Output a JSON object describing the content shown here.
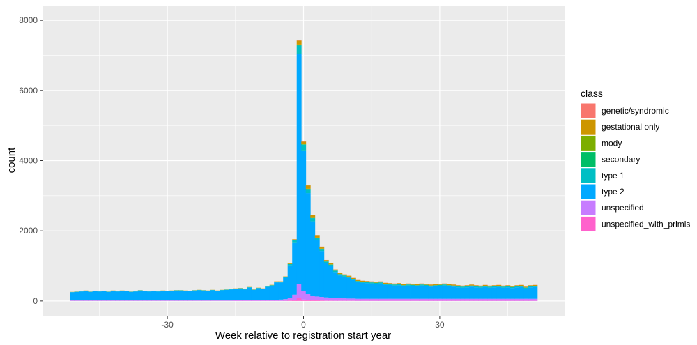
{
  "chart_data": {
    "type": "bar",
    "stacked": true,
    "xlabel": "Week relative to registration start year",
    "ylabel": "count",
    "xlim": [
      -57.5,
      57.5
    ],
    "ylim": [
      -420,
      8420
    ],
    "x_ticks": [
      -30,
      0,
      30
    ],
    "x_tick_labels": [
      "-30",
      "0",
      "30"
    ],
    "y_ticks": [
      0,
      2000,
      4000,
      6000,
      8000
    ],
    "y_tick_labels": [
      "0",
      "2000",
      "4000",
      "6000",
      "8000"
    ],
    "grid": true,
    "legend": {
      "title": "class",
      "position": "right",
      "entries": [
        "genetic/syndromic",
        "gestational only",
        "mody",
        "secondary",
        "type 1",
        "type 2",
        "unspecified",
        "unspecified_with_primis"
      ]
    },
    "colors": {
      "genetic/syndromic": "#F8766D",
      "gestational only": "#CD9600",
      "mody": "#7CAE00",
      "secondary": "#00BE67",
      "type 1": "#00BFC4",
      "type 2": "#00A9FF",
      "unspecified": "#C77CFF",
      "unspecified_with_primis": "#FF61CC"
    },
    "x": [
      -51,
      -50,
      -49,
      -48,
      -47,
      -46,
      -45,
      -44,
      -43,
      -42,
      -41,
      -40,
      -39,
      -38,
      -37,
      -36,
      -35,
      -34,
      -33,
      -32,
      -31,
      -30,
      -29,
      -28,
      -27,
      -26,
      -25,
      -24,
      -23,
      -22,
      -21,
      -20,
      -19,
      -18,
      -17,
      -16,
      -15,
      -14,
      -13,
      -12,
      -11,
      -10,
      -9,
      -8,
      -7,
      -6,
      -5,
      -4,
      -3,
      -2,
      -1,
      0,
      1,
      2,
      3,
      4,
      5,
      6,
      7,
      8,
      9,
      10,
      11,
      12,
      13,
      14,
      15,
      16,
      17,
      18,
      19,
      20,
      21,
      22,
      23,
      24,
      25,
      26,
      27,
      28,
      29,
      30,
      31,
      32,
      33,
      34,
      35,
      36,
      37,
      38,
      39,
      40,
      41,
      42,
      43,
      44,
      45,
      46,
      47,
      48,
      49,
      50,
      51
    ],
    "totals": [
      260,
      270,
      280,
      300,
      270,
      290,
      280,
      290,
      270,
      300,
      280,
      300,
      290,
      270,
      280,
      310,
      290,
      280,
      290,
      280,
      300,
      290,
      300,
      310,
      310,
      300,
      290,
      310,
      320,
      310,
      300,
      320,
      300,
      320,
      330,
      340,
      360,
      370,
      340,
      400,
      330,
      380,
      360,
      420,
      460,
      560,
      560,
      700,
      1070,
      1760,
      7430,
      4550,
      3300,
      2460,
      1880,
      1550,
      1170,
      1080,
      900,
      800,
      760,
      720,
      660,
      600,
      580,
      570,
      560,
      550,
      560,
      520,
      510,
      500,
      510,
      480,
      500,
      490,
      480,
      500,
      490,
      470,
      480,
      490,
      500,
      480,
      470,
      450,
      440,
      450,
      470,
      450,
      440,
      460,
      440,
      450,
      460,
      440,
      450,
      430,
      450,
      460,
      410,
      450,
      460
    ],
    "series": [
      {
        "name": "unspecified_with_primis",
        "values": [
          5,
          5,
          5,
          5,
          5,
          5,
          5,
          5,
          5,
          5,
          5,
          5,
          5,
          5,
          5,
          5,
          5,
          5,
          5,
          5,
          5,
          5,
          5,
          5,
          5,
          5,
          5,
          5,
          5,
          5,
          5,
          5,
          5,
          5,
          5,
          5,
          5,
          5,
          5,
          5,
          5,
          5,
          5,
          5,
          5,
          5,
          5,
          8,
          15,
          30,
          80,
          40,
          25,
          20,
          18,
          15,
          12,
          12,
          10,
          10,
          10,
          10,
          10,
          8,
          8,
          8,
          8,
          8,
          8,
          8,
          8,
          8,
          8,
          8,
          8,
          8,
          8,
          8,
          8,
          8,
          8,
          8,
          8,
          8,
          8,
          8,
          8,
          8,
          8,
          8,
          8,
          8,
          8,
          8,
          8,
          8,
          8,
          8,
          8,
          8,
          8,
          8,
          8
        ]
      },
      {
        "name": "unspecified",
        "values": [
          10,
          10,
          10,
          10,
          10,
          10,
          10,
          10,
          10,
          10,
          10,
          10,
          10,
          10,
          10,
          10,
          10,
          10,
          10,
          10,
          10,
          10,
          10,
          10,
          10,
          10,
          10,
          10,
          10,
          10,
          10,
          10,
          10,
          10,
          10,
          10,
          15,
          15,
          15,
          20,
          15,
          20,
          20,
          25,
          25,
          30,
          35,
          45,
          80,
          150,
          400,
          250,
          170,
          130,
          110,
          100,
          90,
          80,
          75,
          70,
          65,
          60,
          60,
          55,
          55,
          55,
          55,
          55,
          55,
          55,
          55,
          55,
          55,
          55,
          55,
          55,
          55,
          55,
          55,
          55,
          55,
          55,
          55,
          55,
          55,
          55,
          55,
          55,
          55,
          55,
          55,
          55,
          55,
          55,
          55,
          55,
          55,
          55,
          55,
          55,
          55,
          55,
          55
        ]
      },
      {
        "name": "type 2",
        "values": [
          235,
          245,
          255,
          272,
          245,
          263,
          255,
          263,
          245,
          273,
          255,
          273,
          263,
          245,
          255,
          282,
          263,
          255,
          263,
          255,
          273,
          263,
          273,
          282,
          282,
          273,
          263,
          282,
          292,
          282,
          273,
          292,
          273,
          292,
          302,
          312,
          325,
          335,
          305,
          358,
          295,
          340,
          320,
          370,
          405,
          495,
          490,
          610,
          920,
          1490,
          6550,
          4000,
          2880,
          2120,
          1600,
          1310,
          970,
          900,
          740,
          650,
          620,
          590,
          530,
          480,
          460,
          450,
          440,
          430,
          440,
          400,
          390,
          380,
          390,
          360,
          380,
          370,
          360,
          380,
          370,
          350,
          360,
          370,
          380,
          360,
          350,
          330,
          320,
          330,
          350,
          330,
          320,
          340,
          320,
          330,
          340,
          320,
          330,
          310,
          330,
          340,
          290,
          330,
          340
        ]
      },
      {
        "name": "type 1",
        "values": [
          5,
          5,
          5,
          8,
          5,
          7,
          5,
          7,
          5,
          7,
          5,
          7,
          7,
          5,
          5,
          8,
          7,
          5,
          7,
          5,
          7,
          7,
          7,
          8,
          8,
          7,
          7,
          8,
          8,
          8,
          7,
          8,
          7,
          8,
          8,
          8,
          8,
          10,
          8,
          12,
          8,
          10,
          10,
          12,
          15,
          20,
          20,
          25,
          35,
          55,
          250,
          160,
          110,
          90,
          70,
          60,
          50,
          45,
          38,
          35,
          32,
          30,
          28,
          27,
          27,
          27,
          27,
          27,
          27,
          27,
          27,
          27,
          27,
          27,
          27,
          27,
          27,
          27,
          27,
          27,
          27,
          27,
          27,
          27,
          27,
          27,
          27,
          27,
          27,
          27,
          27,
          27,
          27,
          27,
          27,
          27,
          27,
          27,
          27,
          27,
          27,
          27,
          27
        ]
      },
      {
        "name": "secondary",
        "values": [
          1,
          1,
          1,
          1,
          1,
          1,
          1,
          1,
          1,
          1,
          1,
          1,
          1,
          1,
          1,
          1,
          1,
          1,
          1,
          1,
          1,
          1,
          1,
          1,
          1,
          1,
          1,
          1,
          1,
          1,
          1,
          1,
          1,
          1,
          1,
          1,
          1,
          1,
          1,
          1,
          1,
          1,
          1,
          1,
          1,
          1,
          1,
          2,
          3,
          5,
          20,
          12,
          8,
          6,
          5,
          4,
          3,
          3,
          3,
          3,
          2,
          2,
          2,
          2,
          2,
          2,
          2,
          2,
          2,
          2,
          2,
          2,
          2,
          2,
          2,
          2,
          2,
          2,
          2,
          2,
          2,
          2,
          2,
          2,
          2,
          2,
          2,
          2,
          2,
          2,
          2,
          2,
          2,
          2,
          2,
          2,
          2,
          2,
          2,
          2,
          2,
          2,
          2
        ]
      },
      {
        "name": "mody",
        "values": [
          1,
          1,
          1,
          1,
          1,
          1,
          1,
          1,
          1,
          1,
          1,
          1,
          1,
          1,
          1,
          1,
          1,
          1,
          1,
          1,
          1,
          1,
          1,
          1,
          1,
          1,
          1,
          1,
          1,
          1,
          1,
          1,
          1,
          1,
          1,
          1,
          1,
          1,
          1,
          1,
          1,
          1,
          1,
          1,
          1,
          1,
          1,
          1,
          2,
          3,
          10,
          8,
          5,
          4,
          3,
          3,
          2,
          2,
          2,
          2,
          2,
          2,
          2,
          2,
          2,
          2,
          2,
          2,
          2,
          2,
          2,
          2,
          2,
          2,
          2,
          2,
          2,
          2,
          2,
          2,
          2,
          2,
          2,
          2,
          2,
          2,
          2,
          2,
          2,
          2,
          2,
          2,
          2,
          2,
          2,
          2,
          2,
          2,
          2,
          2,
          2,
          2,
          2
        ]
      },
      {
        "name": "gestational only",
        "values": [
          3,
          3,
          3,
          3,
          3,
          3,
          3,
          3,
          3,
          3,
          3,
          3,
          3,
          3,
          3,
          3,
          3,
          3,
          3,
          3,
          3,
          3,
          3,
          3,
          3,
          3,
          3,
          3,
          3,
          3,
          3,
          3,
          3,
          3,
          3,
          3,
          5,
          5,
          5,
          5,
          5,
          5,
          5,
          5,
          8,
          8,
          8,
          9,
          15,
          25,
          110,
          70,
          95,
          85,
          72,
          55,
          40,
          35,
          30,
          28,
          27,
          26,
          25,
          25,
          25,
          25,
          25,
          25,
          25,
          25,
          20,
          25,
          25,
          25,
          25,
          25,
          25,
          25,
          25,
          25,
          25,
          25,
          25,
          25,
          25,
          25,
          25,
          25,
          25,
          25,
          25,
          25,
          25,
          25,
          25,
          25,
          25,
          25,
          25,
          25,
          20,
          25,
          25
        ]
      },
      {
        "name": "genetic/syndromic",
        "values": [
          0,
          0,
          0,
          0,
          0,
          0,
          0,
          0,
          0,
          0,
          0,
          0,
          0,
          0,
          0,
          0,
          0,
          0,
          0,
          0,
          0,
          0,
          0,
          0,
          0,
          0,
          0,
          0,
          0,
          0,
          0,
          0,
          0,
          0,
          0,
          0,
          0,
          0,
          0,
          0,
          0,
          0,
          0,
          0,
          0,
          0,
          0,
          0,
          0,
          2,
          10,
          10,
          7,
          5,
          2,
          3,
          3,
          3,
          2,
          2,
          2,
          0,
          3,
          3,
          3,
          3,
          3,
          3,
          3,
          3,
          3,
          3,
          3,
          3,
          3,
          3,
          3,
          3,
          3,
          3,
          3,
          3,
          3,
          3,
          3,
          3,
          3,
          3,
          3,
          3,
          3,
          3,
          3,
          3,
          3,
          3,
          3,
          3,
          3,
          3,
          3,
          3,
          3
        ]
      }
    ]
  }
}
